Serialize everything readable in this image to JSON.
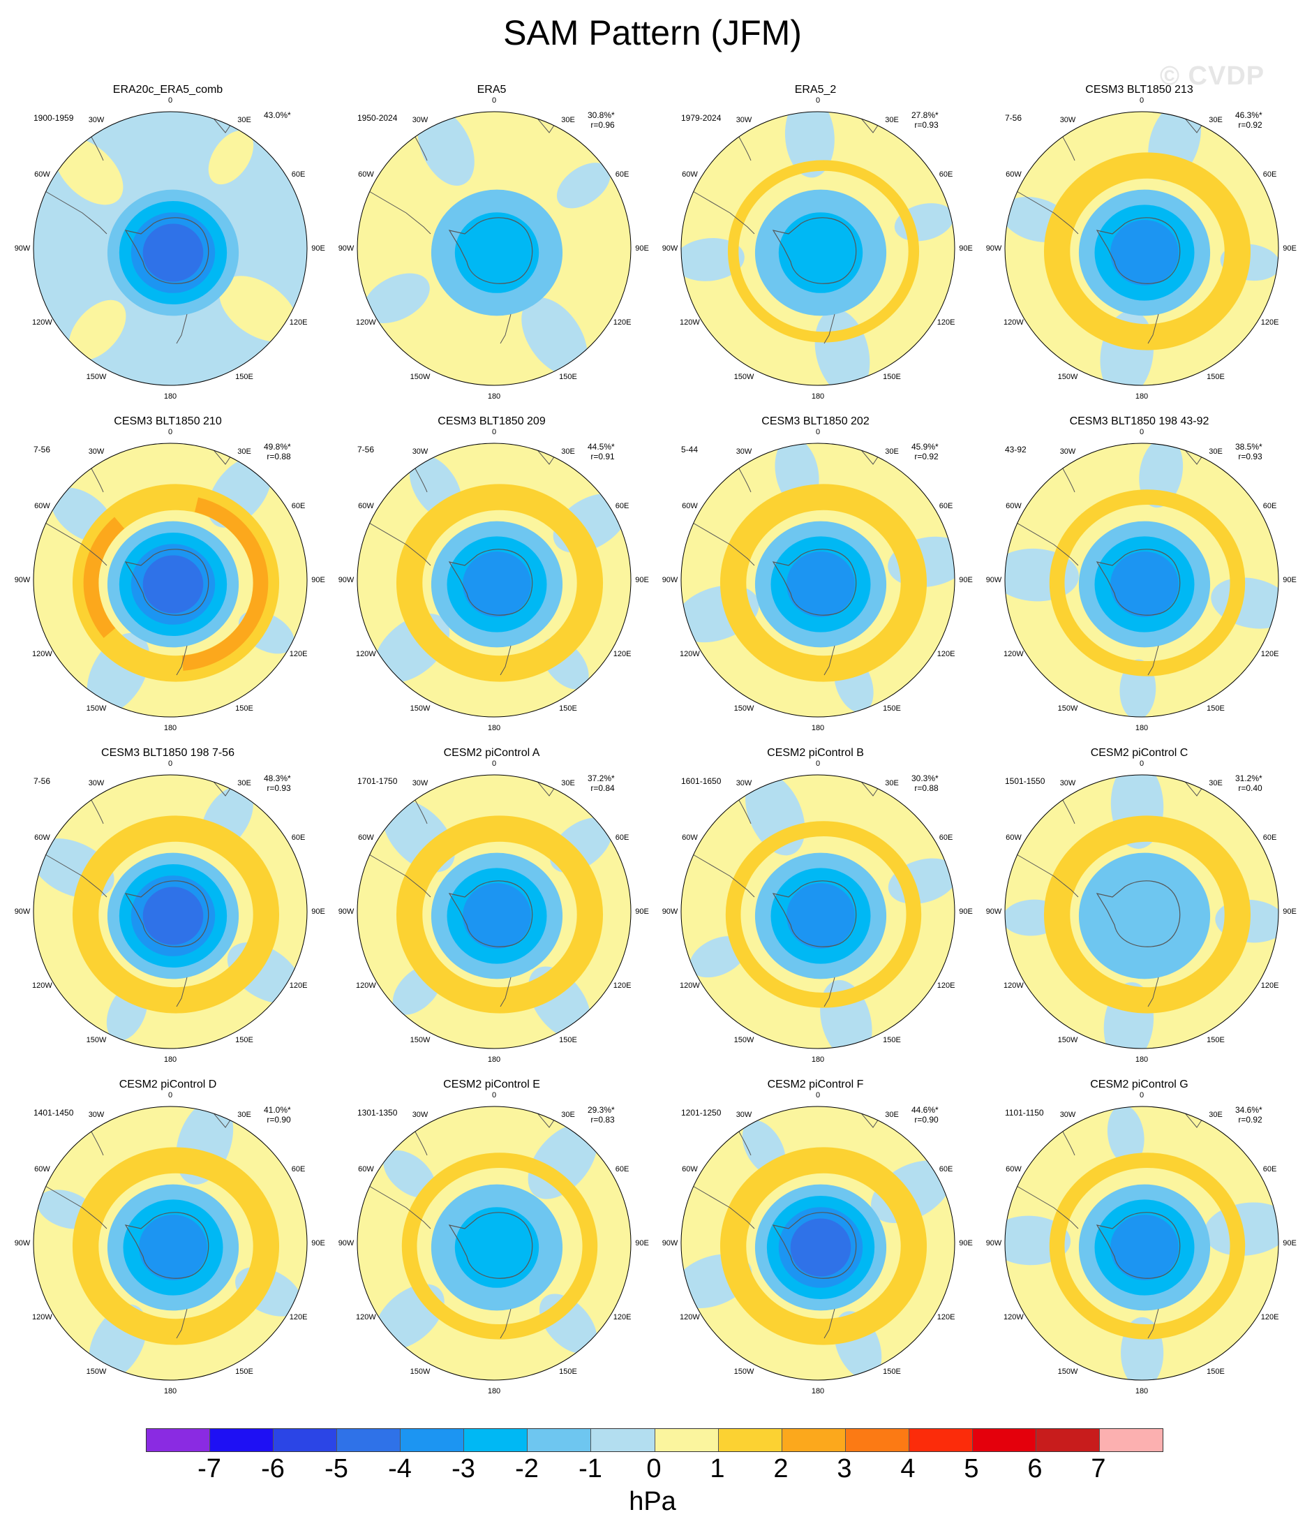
{
  "title": "SAM Pattern (JFM)",
  "watermark": "© CVDP",
  "units": "hPa",
  "longitude_labels": [
    "0",
    "30E",
    "60E",
    "90E",
    "120E",
    "150E",
    "180",
    "150W",
    "120W",
    "90W",
    "60W",
    "30W"
  ],
  "colorbar": {
    "ticks": [
      "-7",
      "-6",
      "-5",
      "-4",
      "-3",
      "-2",
      "-1",
      "0",
      "1",
      "2",
      "3",
      "4",
      "5",
      "6",
      "7"
    ],
    "colors": [
      "#8a2be2",
      "#1e10f4",
      "#2b45e6",
      "#2f72e8",
      "#1c95f2",
      "#00b8f4",
      "#6ec6f0",
      "#b3def0",
      "#fbf59e",
      "#fcd232",
      "#fca81c",
      "#fc7a14",
      "#fc2c0a",
      "#e4000c",
      "#c81c1c",
      "#fcb0b0"
    ]
  },
  "panels": [
    {
      "name": "ERA20c_ERA5_comb",
      "period": "1900-1959",
      "pct": "43.0%*",
      "r": ""
    },
    {
      "name": "ERA5",
      "period": "1950-2024",
      "pct": "30.8%*",
      "r": "r=0.96"
    },
    {
      "name": "ERA5_2",
      "period": "1979-2024",
      "pct": "27.8%*",
      "r": "r=0.93"
    },
    {
      "name": "CESM3 BLT1850 213",
      "period": "7-56",
      "pct": "46.3%*",
      "r": "r=0.92"
    },
    {
      "name": "CESM3 BLT1850 210",
      "period": "7-56",
      "pct": "49.8%*",
      "r": "r=0.88"
    },
    {
      "name": "CESM3 BLT1850 209",
      "period": "7-56",
      "pct": "44.5%*",
      "r": "r=0.91"
    },
    {
      "name": "CESM3 BLT1850 202",
      "period": "5-44",
      "pct": "45.9%*",
      "r": "r=0.92"
    },
    {
      "name": "CESM3 BLT1850 198 43-92",
      "period": "43-92",
      "pct": "38.5%*",
      "r": "r=0.93"
    },
    {
      "name": "CESM3 BLT1850 198 7-56",
      "period": "7-56",
      "pct": "48.3%*",
      "r": "r=0.93"
    },
    {
      "name": "CESM2 piControl A",
      "period": "1701-1750",
      "pct": "37.2%*",
      "r": "r=0.84"
    },
    {
      "name": "CESM2 piControl B",
      "period": "1601-1650",
      "pct": "30.3%*",
      "r": "r=0.88"
    },
    {
      "name": "CESM2 piControl C",
      "period": "1501-1550",
      "pct": "31.2%*",
      "r": "r=0.40"
    },
    {
      "name": "CESM2 piControl D",
      "period": "1401-1450",
      "pct": "41.0%*",
      "r": "r=0.90"
    },
    {
      "name": "CESM2 piControl E",
      "period": "1301-1350",
      "pct": "29.3%*",
      "r": "r=0.83"
    },
    {
      "name": "CESM2 piControl F",
      "period": "1201-1250",
      "pct": "44.6%*",
      "r": "r=0.90"
    },
    {
      "name": "CESM2 piControl G",
      "period": "1101-1150",
      "pct": "34.6%*",
      "r": "r=0.92"
    }
  ],
  "patterns": [
    {
      "core": -4,
      "ring": 0,
      "ringAmp": 0,
      "bg": -1
    },
    {
      "core": -2,
      "ring": 0,
      "ringAmp": 0,
      "bg": 0
    },
    {
      "core": -2,
      "ring": 1,
      "ringAmp": 0.3,
      "bg": 0
    },
    {
      "core": -3,
      "ring": 1,
      "ringAmp": 1,
      "bg": 0
    },
    {
      "core": -4,
      "ring": 2,
      "ringAmp": 1,
      "bg": 0
    },
    {
      "core": -3,
      "ring": 1,
      "ringAmp": 1,
      "bg": 0
    },
    {
      "core": -3,
      "ring": 1,
      "ringAmp": 1,
      "bg": 0
    },
    {
      "core": -3,
      "ring": 1,
      "ringAmp": 0.5,
      "bg": 0
    },
    {
      "core": -4,
      "ring": 1,
      "ringAmp": 1,
      "bg": 0
    },
    {
      "core": -3,
      "ring": 1,
      "ringAmp": 1,
      "bg": 0
    },
    {
      "core": -3,
      "ring": 1,
      "ringAmp": 0.5,
      "bg": 0
    },
    {
      "core": -1,
      "ring": 1,
      "ringAmp": 1,
      "bg": 0
    },
    {
      "core": -3,
      "ring": 1,
      "ringAmp": 1,
      "bg": 0
    },
    {
      "core": -2,
      "ring": 1,
      "ringAmp": 0.5,
      "bg": 0
    },
    {
      "core": -4,
      "ring": 1,
      "ringAmp": 1,
      "bg": 0
    },
    {
      "core": -3,
      "ring": 1,
      "ringAmp": 0.5,
      "bg": 0
    }
  ]
}
